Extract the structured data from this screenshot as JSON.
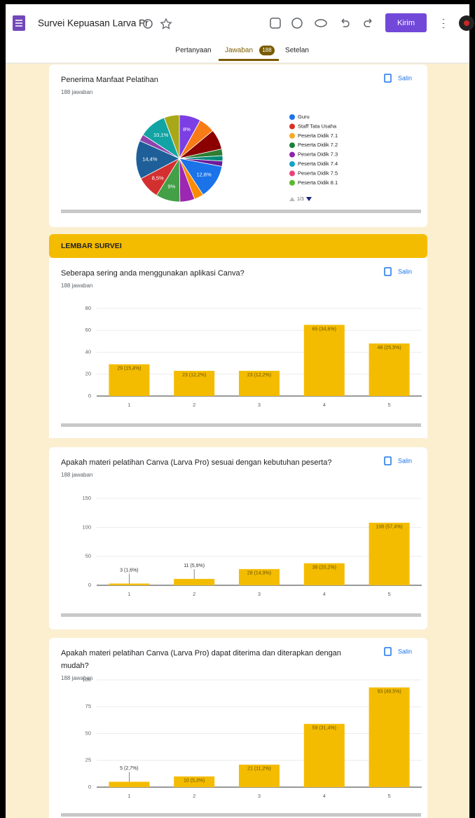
{
  "header": {
    "title": "Survei Kepuasan Larva Pr",
    "send": "Kirim"
  },
  "tabs": {
    "questions": "Pertanyaan",
    "responses": "Jawaban",
    "badge": "188",
    "settings": "Setelan"
  },
  "section": "LEMBAR SURVEI",
  "cards": [
    {
      "title": "Penerima Manfaat Pelatihan",
      "responses": "188 jawaban",
      "copy": "Salin",
      "chart": {
        "type": "pie",
        "values": [
          8,
          6,
          7.5,
          2.5,
          2,
          2,
          12.8,
          3.5,
          5.5,
          9,
          8.5,
          14.4,
          2.5,
          10.1,
          5.7
        ],
        "value_labels": [
          "8%",
          null,
          null,
          null,
          null,
          null,
          "12,8%",
          null,
          null,
          "9%",
          "8,5%",
          "14,4%",
          null,
          "10,1%",
          null
        ],
        "colors": [
          "#7b3fe4",
          "#f97b16",
          "#8b0000",
          "#2e7d32",
          "#00897b",
          "#6a1b9a",
          "#1a73e8",
          "#fb8c00",
          "#9c27b0",
          "#43a047",
          "#d32f2f",
          "#1f5f99",
          "#8e44ad",
          "#12a4a4",
          "#a8a818"
        ],
        "legend": [
          {
            "name": "Guru",
            "color": "#1a73e8"
          },
          {
            "name": "Staff Tata Usaha",
            "color": "#d93025"
          },
          {
            "name": "Peserta Didik 7.1",
            "color": "#f9a825"
          },
          {
            "name": "Peserta Didik 7.2",
            "color": "#188038"
          },
          {
            "name": "Peserta Didik 7.3",
            "color": "#8e24aa"
          },
          {
            "name": "Peserta Didik 7.4",
            "color": "#12a4c4"
          },
          {
            "name": "Peserta Didik 7.5",
            "color": "#e8437a"
          },
          {
            "name": "Peserta Didik 8.1",
            "color": "#5ab82a"
          }
        ],
        "legend_page": "1/3"
      }
    },
    {
      "title": "Seberapa sering anda menggunakan aplikasi Canva?",
      "responses": "188 jawaban",
      "copy": "Salin",
      "chart": {
        "type": "bar",
        "color": "#f4bc00",
        "categories": [
          "1",
          "2",
          "3",
          "4",
          "5"
        ],
        "values": [
          29,
          23,
          23,
          65,
          48
        ],
        "value_labels": [
          "29 (15,4%)",
          "23 (12,2%)",
          "23 (12,2%)",
          "65 (34,6%)",
          "48 (25,5%)"
        ],
        "ylim": [
          0,
          80
        ],
        "yticks": [
          0,
          20,
          40,
          60,
          80
        ],
        "grid": true
      }
    },
    {
      "title": "Apakah materi pelatihan Canva (Larva Pro) sesuai dengan kebutuhan peserta?",
      "responses": "188 jawaban",
      "copy": "Salin",
      "chart": {
        "type": "bar",
        "color": "#f4bc00",
        "categories": [
          "1",
          "2",
          "3",
          "4",
          "5"
        ],
        "values": [
          3,
          11,
          28,
          38,
          108
        ],
        "value_labels": [
          "3 (1,6%)",
          "11 (5,9%)",
          "28 (14,9%)",
          "38 (20,2%)",
          "108 (57,4%)"
        ],
        "ylim": [
          0,
          150
        ],
        "yticks": [
          0,
          50,
          100,
          150
        ],
        "grid": true
      }
    },
    {
      "title": [
        "Apakah materi pelatihan Canva (Larva Pro) dapat diterima dan diterapkan dengan",
        "mudah?"
      ],
      "responses": "188 jawaban",
      "copy": "Salin",
      "chart": {
        "type": "bar",
        "color": "#f4bc00",
        "categories": [
          "1",
          "2",
          "3",
          "4",
          "5"
        ],
        "values": [
          5,
          10,
          21,
          59,
          93
        ],
        "value_labels": [
          "5 (2,7%)",
          "10 (5,3%)",
          "21 (11,2%)",
          "59 (31,4%)",
          "93 (49,5%)"
        ],
        "ylim": [
          0,
          100
        ],
        "yticks": [
          0,
          25,
          50,
          75,
          100
        ],
        "grid": true
      }
    }
  ]
}
